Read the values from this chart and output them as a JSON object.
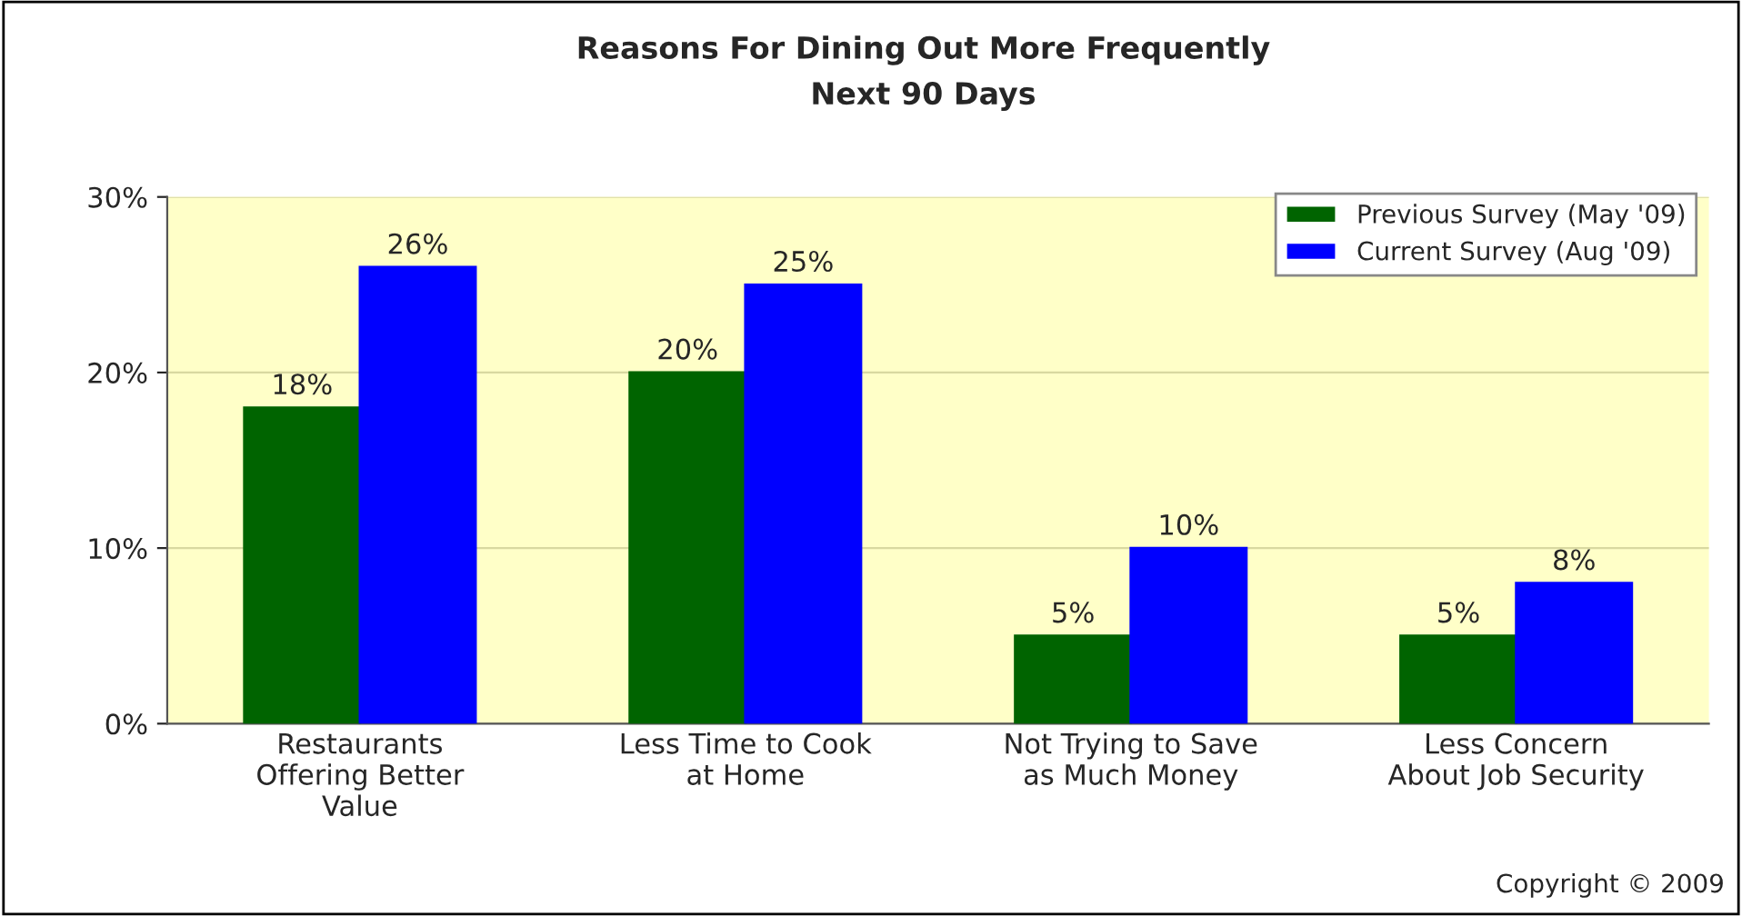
{
  "chart_data": {
    "type": "bar",
    "title": "Reasons For Dining Out More Frequently",
    "subtitle": "Next 90 Days",
    "categories": [
      "Restaurants\nOffering Better\nValue",
      "Less Time to Cook\nat Home",
      "Not Trying to Save\nas Much Money",
      "Less Concern\nAbout Job Security"
    ],
    "series": [
      {
        "name": "Previous Survey (May '09)",
        "color": "#006400",
        "values": [
          18,
          20,
          5,
          5
        ],
        "value_labels": [
          "18%",
          "20%",
          "5%",
          "5%"
        ]
      },
      {
        "name": "Current Survey (Aug '09)",
        "color": "#0000ff",
        "values": [
          26,
          25,
          10,
          8
        ],
        "value_labels": [
          "26%",
          "25%",
          "10%",
          "8%"
        ]
      }
    ],
    "ylim": [
      0,
      30
    ],
    "yticks": [
      {
        "value": 0,
        "label": "0%"
      },
      {
        "value": 10,
        "label": "10%"
      },
      {
        "value": 20,
        "label": "20%"
      },
      {
        "value": 30,
        "label": "30%"
      }
    ],
    "grid": "y",
    "legend": "top right",
    "annotations": [
      "Copyright © 2009"
    ]
  }
}
